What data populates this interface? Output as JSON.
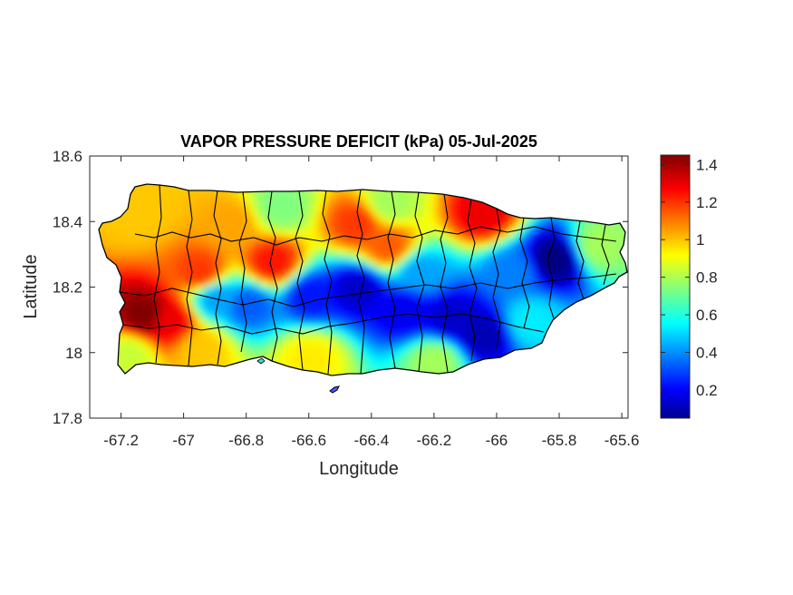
{
  "chart_data": {
    "type": "heatmap",
    "title": "VAPOR PRESSURE DEFICIT (kPa) 05-Jul-2025",
    "xlabel": "Longitude",
    "ylabel": "Latitude",
    "xlim": [
      -67.3,
      -65.58
    ],
    "ylim": [
      17.8,
      18.6
    ],
    "xticks": [
      -67.2,
      -67,
      -66.8,
      -66.6,
      -66.4,
      -66.2,
      -66,
      -65.8,
      -65.6
    ],
    "xtick_labels": [
      "-67.2",
      "-67",
      "-66.8",
      "-66.6",
      "-66.4",
      "-66.2",
      "-66",
      "-65.8",
      "-65.6"
    ],
    "yticks": [
      17.8,
      18,
      18.2,
      18.4,
      18.6
    ],
    "ytick_labels": [
      "17.8",
      "18",
      "18.2",
      "18.4",
      "18.6"
    ],
    "colorbar": {
      "colormap": "jet",
      "range": [
        0.05,
        1.45
      ],
      "ticks": [
        0.2,
        0.4,
        0.6,
        0.8,
        1,
        1.2,
        1.4
      ],
      "tick_labels": [
        "0.2",
        "0.4",
        "0.6",
        "0.8",
        "1",
        "1.2",
        "1.4"
      ]
    },
    "field_features": [
      {
        "lon": -66.05,
        "lat": 18.06,
        "vpd": 0.12
      },
      {
        "lon": -66.15,
        "lat": 18.11,
        "vpd": 0.15
      },
      {
        "lon": -66.3,
        "lat": 18.13,
        "vpd": 0.2
      },
      {
        "lon": -66.45,
        "lat": 18.2,
        "vpd": 0.15
      },
      {
        "lon": -66.6,
        "lat": 18.18,
        "vpd": 0.25
      },
      {
        "lon": -66.8,
        "lat": 18.15,
        "vpd": 0.35
      },
      {
        "lon": -66.9,
        "lat": 18.17,
        "vpd": 0.45
      },
      {
        "lon": -65.82,
        "lat": 18.29,
        "vpd": 0.05
      },
      {
        "lon": -65.95,
        "lat": 18.25,
        "vpd": 0.4
      },
      {
        "lon": -66.25,
        "lat": 18.25,
        "vpd": 0.45
      },
      {
        "lon": -67.13,
        "lat": 18.12,
        "vpd": 1.45
      },
      {
        "lon": -67.05,
        "lat": 18.1,
        "vpd": 1.3
      },
      {
        "lon": -66.95,
        "lat": 18.25,
        "vpd": 1.2
      },
      {
        "lon": -66.72,
        "lat": 18.28,
        "vpd": 1.25
      },
      {
        "lon": -66.45,
        "lat": 18.4,
        "vpd": 1.2
      },
      {
        "lon": -66.35,
        "lat": 18.33,
        "vpd": 1.15
      },
      {
        "lon": -66.05,
        "lat": 18.43,
        "vpd": 1.3
      },
      {
        "lon": -67.15,
        "lat": 18.43,
        "vpd": 1.0
      },
      {
        "lon": -66.85,
        "lat": 18.4,
        "vpd": 1.05
      },
      {
        "lon": -66.95,
        "lat": 18.02,
        "vpd": 1.0
      },
      {
        "lon": -67.18,
        "lat": 18.0,
        "vpd": 0.85
      },
      {
        "lon": -66.6,
        "lat": 17.99,
        "vpd": 0.95
      },
      {
        "lon": -66.2,
        "lat": 17.98,
        "vpd": 0.8
      },
      {
        "lon": -65.68,
        "lat": 18.33,
        "vpd": 0.8
      },
      {
        "lon": -65.9,
        "lat": 18.1,
        "vpd": 0.55
      },
      {
        "lon": -66.7,
        "lat": 18.45,
        "vpd": 0.75
      },
      {
        "lon": -66.35,
        "lat": 18.46,
        "vpd": 0.8
      }
    ]
  }
}
